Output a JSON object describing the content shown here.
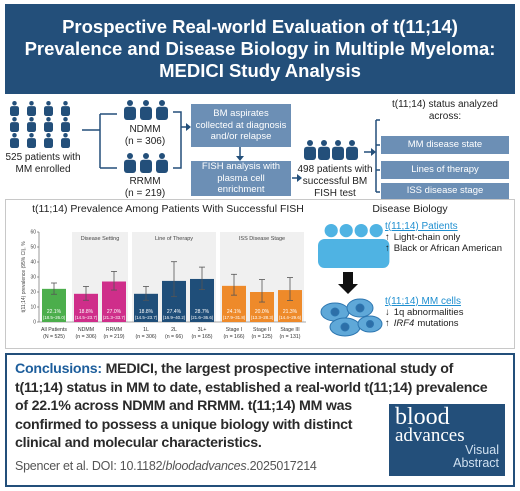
{
  "header": {
    "title": "Prospective Real-world Evaluation of t(11;14) Prevalence and Disease Biology in Multiple Myeloma: MEDICI Study Analysis"
  },
  "flow": {
    "enrolled": "525 patients with MM enrolled",
    "ndmm": "NDMM",
    "ndmm_n": "(n = 306)",
    "rrmm": "RRMM",
    "rrmm_n": "(n = 219)",
    "step1": "BM aspirates collected at diagnosis and/or relapse",
    "step2": "FISH analysis with plasma cell enrichment",
    "successful": "498 patients with successful BM FISH test",
    "analyzed_title": "t(11;14) status analyzed across:",
    "analyzed": [
      "MM disease state",
      "Lines of therapy",
      "ISS disease stage"
    ]
  },
  "chart_data": {
    "type": "bar",
    "title": "t(11;14) Prevalence Among Patients With Successful FISH",
    "y_label": "t(11;14) prevalence (95% CI), %",
    "categories": [
      "All Patients",
      "NDMM",
      "RRMM",
      "1L",
      "2L",
      "3L+",
      "Stage I",
      "Stage II",
      "Stage III"
    ],
    "category_n": [
      "(N = 525)",
      "(n = 306)",
      "(n = 219)",
      "(n = 306)",
      "(n = 66)",
      "(n = 165)",
      "(n = 166)",
      "(n = 125)",
      "(n = 131)"
    ],
    "group_labels": [
      "Disease Setting",
      "Line of Therapy",
      "ISS Disease Stage"
    ],
    "colors": [
      "#4cae4c",
      "#cf2e8a",
      "#cf2e8a",
      "#1f4e79",
      "#1f4e79",
      "#1f4e79",
      "#ee8a2a",
      "#ee8a2a",
      "#ee8a2a"
    ],
    "values": [
      22.1,
      18.8,
      27.0,
      18.8,
      27.4,
      28.7,
      24.1,
      20.0,
      21.3
    ],
    "value_labels": [
      "22.1%",
      "18.8%",
      "27.0%",
      "18.8%",
      "27.4%",
      "28.7%",
      "24.1%",
      "20.0%",
      "21.3%"
    ],
    "ci_low": [
      18.5,
      14.5,
      21.3,
      14.5,
      16.9,
      21.6,
      17.9,
      13.3,
      14.4
    ],
    "ci_high": [
      26.0,
      23.7,
      33.7,
      23.7,
      40.2,
      36.6,
      31.8,
      28.3,
      29.6
    ],
    "ci_labels": [
      "(18.5–26.0)",
      "(14.5–23.7)",
      "(21.3–33.7)",
      "(14.5–23.7)",
      "(16.9–40.2)",
      "(21.6–36.6)",
      "(17.9–31.8)",
      "(13.3–28.3)",
      "(14.4–29.6)"
    ],
    "ylim": [
      0,
      60
    ],
    "yticks": [
      0,
      10,
      20,
      30,
      40,
      50,
      60
    ]
  },
  "biology": {
    "title": "Disease Biology",
    "patients_title": "t(11;14) Patients",
    "patients": [
      {
        "arrow": "↑",
        "text": "Light-chain only"
      },
      {
        "arrow": "↑",
        "text": "Black or African American"
      }
    ],
    "cells_title": "t(11;14) MM cells",
    "cells": [
      {
        "arrow": "↓",
        "text": "1q abnormalities"
      },
      {
        "arrow": "↑",
        "em": "IRF4",
        "text": "mutations"
      }
    ]
  },
  "conclusions": {
    "label": "Conclusions:",
    "text": "MEDICI, the largest prospective international study of t(11;14) status in MM to date, established a real-world t(11;14) prevalence of 22.1% across NDMM and RRMM. t(11;14) MM was confirmed to possess a unique biology with distinct clinical and molecular characteristics."
  },
  "citation": {
    "prefix": "Spencer et al. DOI: 10.1182/",
    "em": "bloodadvances",
    "suffix": ".2025017214"
  },
  "logo": {
    "line1": "blood",
    "line2": "advances",
    "line3": "Visual",
    "line4": "Abstract"
  }
}
